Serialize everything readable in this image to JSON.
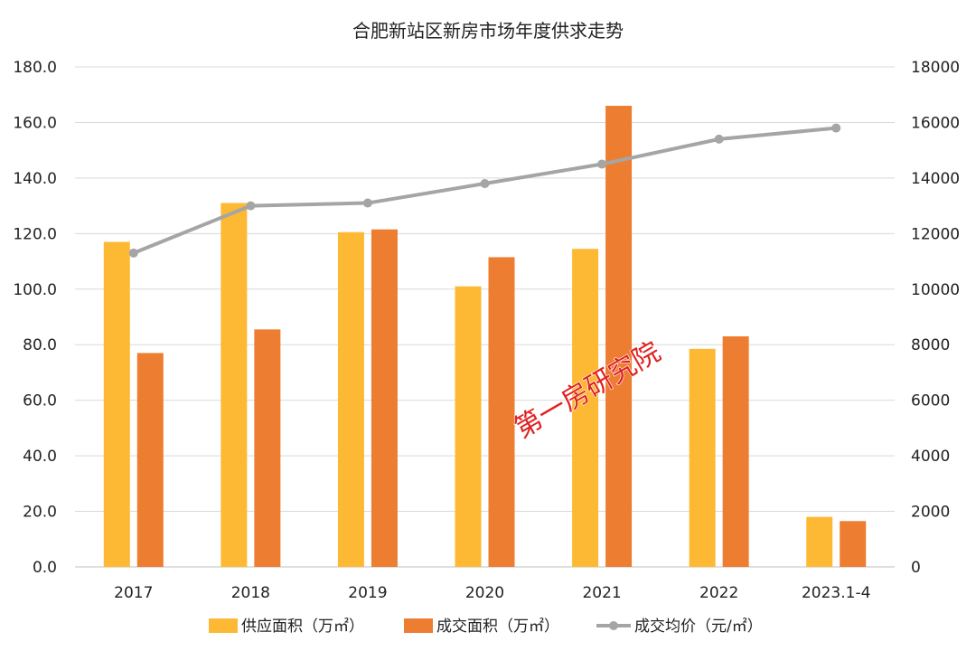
{
  "chart_data": {
    "type": "bar",
    "title": "合肥新站区新房市场年度供求走势",
    "categories": [
      "2017",
      "2018",
      "2019",
      "2020",
      "2021",
      "2022",
      "2023.1-4"
    ],
    "series": [
      {
        "name": "供应面积（万㎡）",
        "type": "bar",
        "axis": "left",
        "color": "#FDB934",
        "values": [
          117.0,
          131.0,
          120.5,
          101.0,
          114.5,
          78.5,
          18.0
        ]
      },
      {
        "name": "成交面积（万㎡）",
        "type": "bar",
        "axis": "left",
        "color": "#ED7D31",
        "values": [
          77.0,
          85.5,
          121.5,
          111.5,
          166.0,
          83.0,
          16.5
        ]
      },
      {
        "name": "成交均价（元/㎡）",
        "type": "line",
        "axis": "right",
        "color": "#A5A5A5",
        "values": [
          11300,
          13000,
          13100,
          13800,
          14500,
          15400,
          15800
        ]
      }
    ],
    "y_left": {
      "min": 0,
      "max": 180,
      "ticks": [
        "0.0",
        "20.0",
        "40.0",
        "60.0",
        "80.0",
        "100.0",
        "120.0",
        "140.0",
        "160.0",
        "180.0"
      ]
    },
    "y_right": {
      "min": 0,
      "max": 18000,
      "ticks": [
        "0",
        "2000",
        "4000",
        "6000",
        "8000",
        "10000",
        "12000",
        "14000",
        "16000",
        "18000"
      ]
    },
    "grid": true,
    "legend_position": "bottom",
    "watermark": "第一房研究院"
  }
}
